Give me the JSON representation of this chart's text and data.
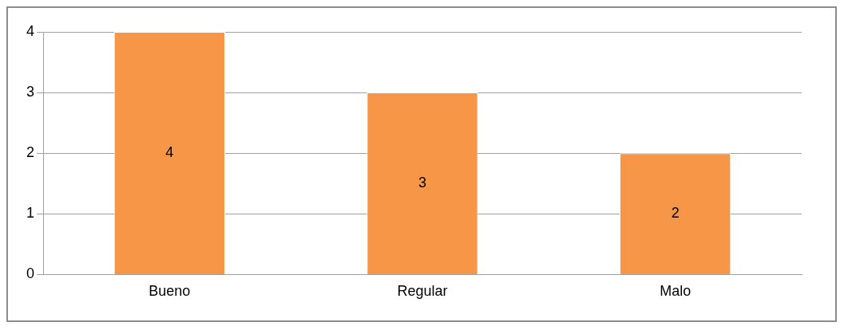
{
  "chart_data": {
    "type": "bar",
    "categories": [
      "Bueno",
      "Regular",
      "Malo"
    ],
    "values": [
      4,
      3,
      2
    ],
    "color": "#f79646",
    "ylim": [
      0,
      4
    ],
    "yticks": [
      0,
      1,
      2,
      3,
      4
    ],
    "grid": "y",
    "data_labels": true,
    "legend": false
  }
}
